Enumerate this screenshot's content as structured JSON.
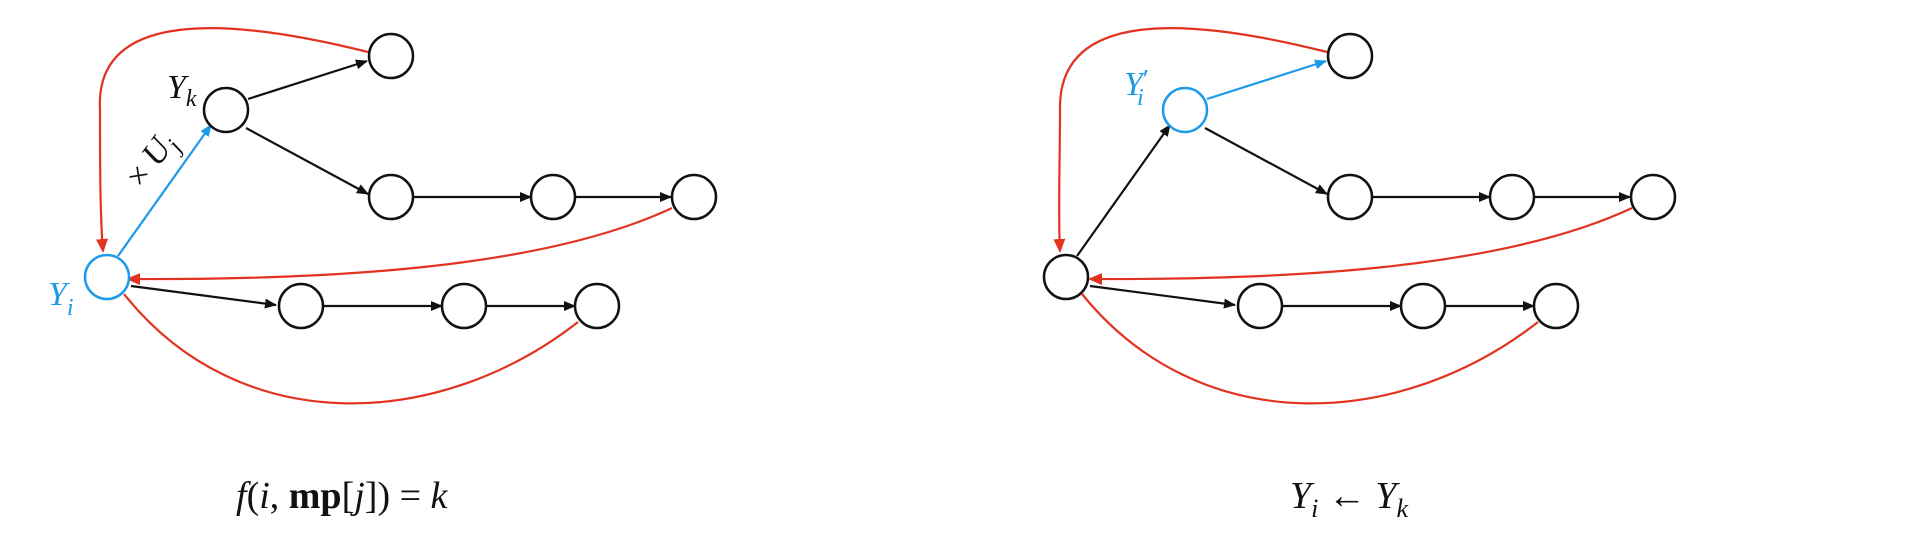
{
  "colors": {
    "black": "#111111",
    "blue": "#1e9be8",
    "red": "#e23321"
  },
  "left": {
    "yk_label": "Y",
    "yk_sub": "k",
    "yi_label": "Y",
    "yi_sub": "i",
    "edge_label_times": "×",
    "edge_label_u": "U",
    "edge_label_u_sub": "j",
    "caption": {
      "f": "f",
      "open": "(",
      "i": "i",
      "comma": ", ",
      "mp": "mp",
      "bracket_open": "[",
      "j": "j",
      "bracket_close": "])",
      "eq": " = ",
      "k": "k"
    }
  },
  "right": {
    "yi_prime_label": "Y",
    "yi_prime_prime": "′",
    "yi_prime_sub": "i",
    "caption": {
      "yi": "Y",
      "yi_sub": "i",
      "arrow": " ← ",
      "yk": "Y",
      "yk_sub": "k"
    }
  }
}
